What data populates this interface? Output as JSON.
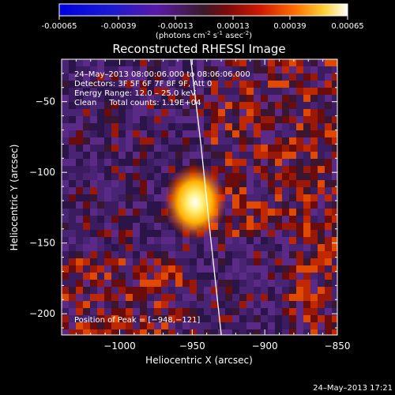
{
  "colorbar": {
    "ticks": [
      "-0.00065",
      "-0.00039",
      "-0.00013",
      "0.00013",
      "0.00039",
      "0.00065"
    ],
    "unit_main": "(photons cm",
    "unit_sup1": "-2",
    "unit_mid": " s",
    "unit_sup2": "-1",
    "unit_tail": " asec",
    "unit_sup3": "-2",
    "unit_close": ")"
  },
  "chart_data": {
    "type": "heatmap",
    "title": "Reconstructed RHESSI Image",
    "xlabel": "Heliocentric X (arcsec)",
    "ylabel": "Heliocentric Y (arcsec)",
    "xlim": [
      -1040,
      -850
    ],
    "ylim": [
      -215,
      -20
    ],
    "x_ticks": [
      {
        "value": -1000,
        "label": "−1000"
      },
      {
        "value": -950,
        "label": "−950"
      },
      {
        "value": -900,
        "label": "−900"
      },
      {
        "value": -850,
        "label": "−850"
      }
    ],
    "y_ticks": [
      {
        "value": -50,
        "label": "−50"
      },
      {
        "value": -100,
        "label": "−100"
      },
      {
        "value": -150,
        "label": "−150"
      },
      {
        "value": -200,
        "label": "−200"
      }
    ],
    "colorbar_range": [
      -0.00065,
      0.00065
    ],
    "peak": {
      "x": -948,
      "y": -121
    },
    "limb": [
      {
        "x": -951,
        "y": -20
      },
      {
        "x": -944,
        "y": -80
      },
      {
        "x": -938,
        "y": -140
      },
      {
        "x": -930,
        "y": -215
      }
    ]
  },
  "annotations": {
    "line1": "24–May–2013 08:00:06.000 to 08:06:06.000",
    "line2": "Detectors: 3F 5F 6F 7F 8F 9F, Att 0",
    "line3": "Energy Range: 12.0 – 25.0 keV",
    "line4": "Clean     Total counts: 1.19E+04",
    "peak_label": "Position of Peak = [−948,−121]"
  },
  "timestamp": "24–May–2013 17:21"
}
